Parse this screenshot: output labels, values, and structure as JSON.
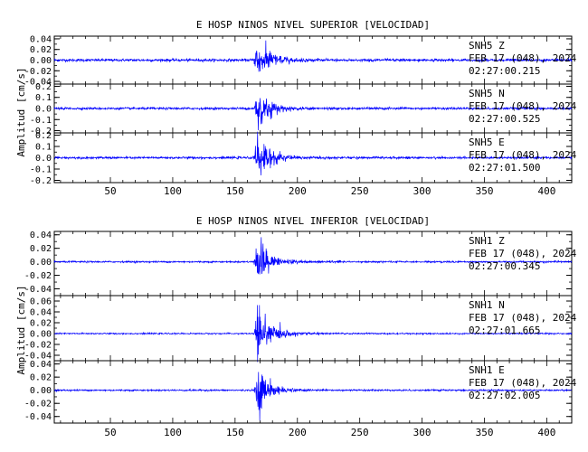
{
  "chart_data": [
    {
      "type": "line",
      "title": "E HOSP NINOS NIVEL SUPERIOR [VELOCIDAD]",
      "ylabel": "Amplitud [cm/s]",
      "xlim": [
        5,
        420
      ],
      "xticks": [
        50,
        100,
        150,
        200,
        250,
        300,
        350,
        400
      ],
      "grid": false,
      "event_onset_x": 165,
      "series": [
        {
          "name": "SNH5 Z",
          "station": "SNH5",
          "component": "Z",
          "date": "FEB 17 (048), 2024",
          "start_time": "02:27:00.215",
          "ylim": [
            -0.045,
            0.045
          ],
          "yticks": [
            "0.04",
            "0.02",
            "0.00",
            "-0.02",
            "-0.04"
          ],
          "ytick_values": [
            0.04,
            0.02,
            0.0,
            -0.02,
            -0.04
          ],
          "peak_amplitude": 0.04,
          "noise_amplitude": 0.002,
          "color": "#0000ff"
        },
        {
          "name": "SNH5 N",
          "station": "SNH5",
          "component": "N",
          "date": "FEB 17 (048), 2024",
          "start_time": "02:27:00.525",
          "ylim": [
            -0.22,
            0.22
          ],
          "yticks": [
            "0.2",
            "0.1",
            "0.0",
            "-0.1",
            "-0.2"
          ],
          "ytick_values": [
            0.2,
            0.1,
            0.0,
            -0.1,
            -0.2
          ],
          "peak_amplitude": 0.2,
          "noise_amplitude": 0.008,
          "color": "#0000ff"
        },
        {
          "name": "SNH5 E",
          "station": "SNH5",
          "component": "E",
          "date": "FEB 17 (048), 2024",
          "start_time": "02:27:01.500",
          "ylim": [
            -0.22,
            0.22
          ],
          "yticks": [
            "0.2",
            "0.1",
            "0.0",
            "-0.1",
            "-0.2"
          ],
          "ytick_values": [
            0.2,
            0.1,
            0.0,
            -0.1,
            -0.2
          ],
          "peak_amplitude": 0.2,
          "noise_amplitude": 0.008,
          "color": "#0000ff"
        }
      ]
    },
    {
      "type": "line",
      "title": "E HOSP NINOS NIVEL INFERIOR [VELOCIDAD]",
      "ylabel": "Amplitud [cm/s]",
      "xlim": [
        5,
        420
      ],
      "xticks": [
        50,
        100,
        150,
        200,
        250,
        300,
        350,
        400
      ],
      "grid": false,
      "event_onset_x": 165,
      "series": [
        {
          "name": "SNH1 Z",
          "station": "SNH1",
          "component": "Z",
          "date": "FEB 17 (048), 2024",
          "start_time": "02:27:00.345",
          "ylim": [
            -0.05,
            0.045
          ],
          "yticks": [
            "0.04",
            "0.02",
            "0.00",
            "-0.02",
            "-0.04"
          ],
          "ytick_values": [
            0.04,
            0.02,
            0.0,
            -0.02,
            -0.04
          ],
          "peak_amplitude": 0.04,
          "noise_amplitude": 0.001,
          "color": "#0000ff"
        },
        {
          "name": "SNH1 N",
          "station": "SNH1",
          "component": "N",
          "date": "FEB 17 (048), 2024",
          "start_time": "02:27:01.665",
          "ylim": [
            -0.05,
            0.07
          ],
          "yticks": [
            "0.06",
            "0.04",
            "0.02",
            "0.00",
            "-0.02",
            "-0.04"
          ],
          "ytick_values": [
            0.06,
            0.04,
            0.02,
            0.0,
            -0.02,
            -0.04
          ],
          "peak_amplitude": 0.06,
          "noise_amplitude": 0.001,
          "color": "#0000ff"
        },
        {
          "name": "SNH1 E",
          "station": "SNH1",
          "component": "E",
          "date": "FEB 17 (048), 2024",
          "start_time": "02:27:02.005",
          "ylim": [
            -0.05,
            0.045
          ],
          "yticks": [
            "0.04",
            "0.02",
            "0.00",
            "-0.02",
            "-0.04"
          ],
          "ytick_values": [
            0.04,
            0.02,
            0.0,
            -0.02,
            -0.04
          ],
          "peak_amplitude": 0.04,
          "noise_amplitude": 0.001,
          "color": "#0000ff"
        }
      ]
    }
  ]
}
